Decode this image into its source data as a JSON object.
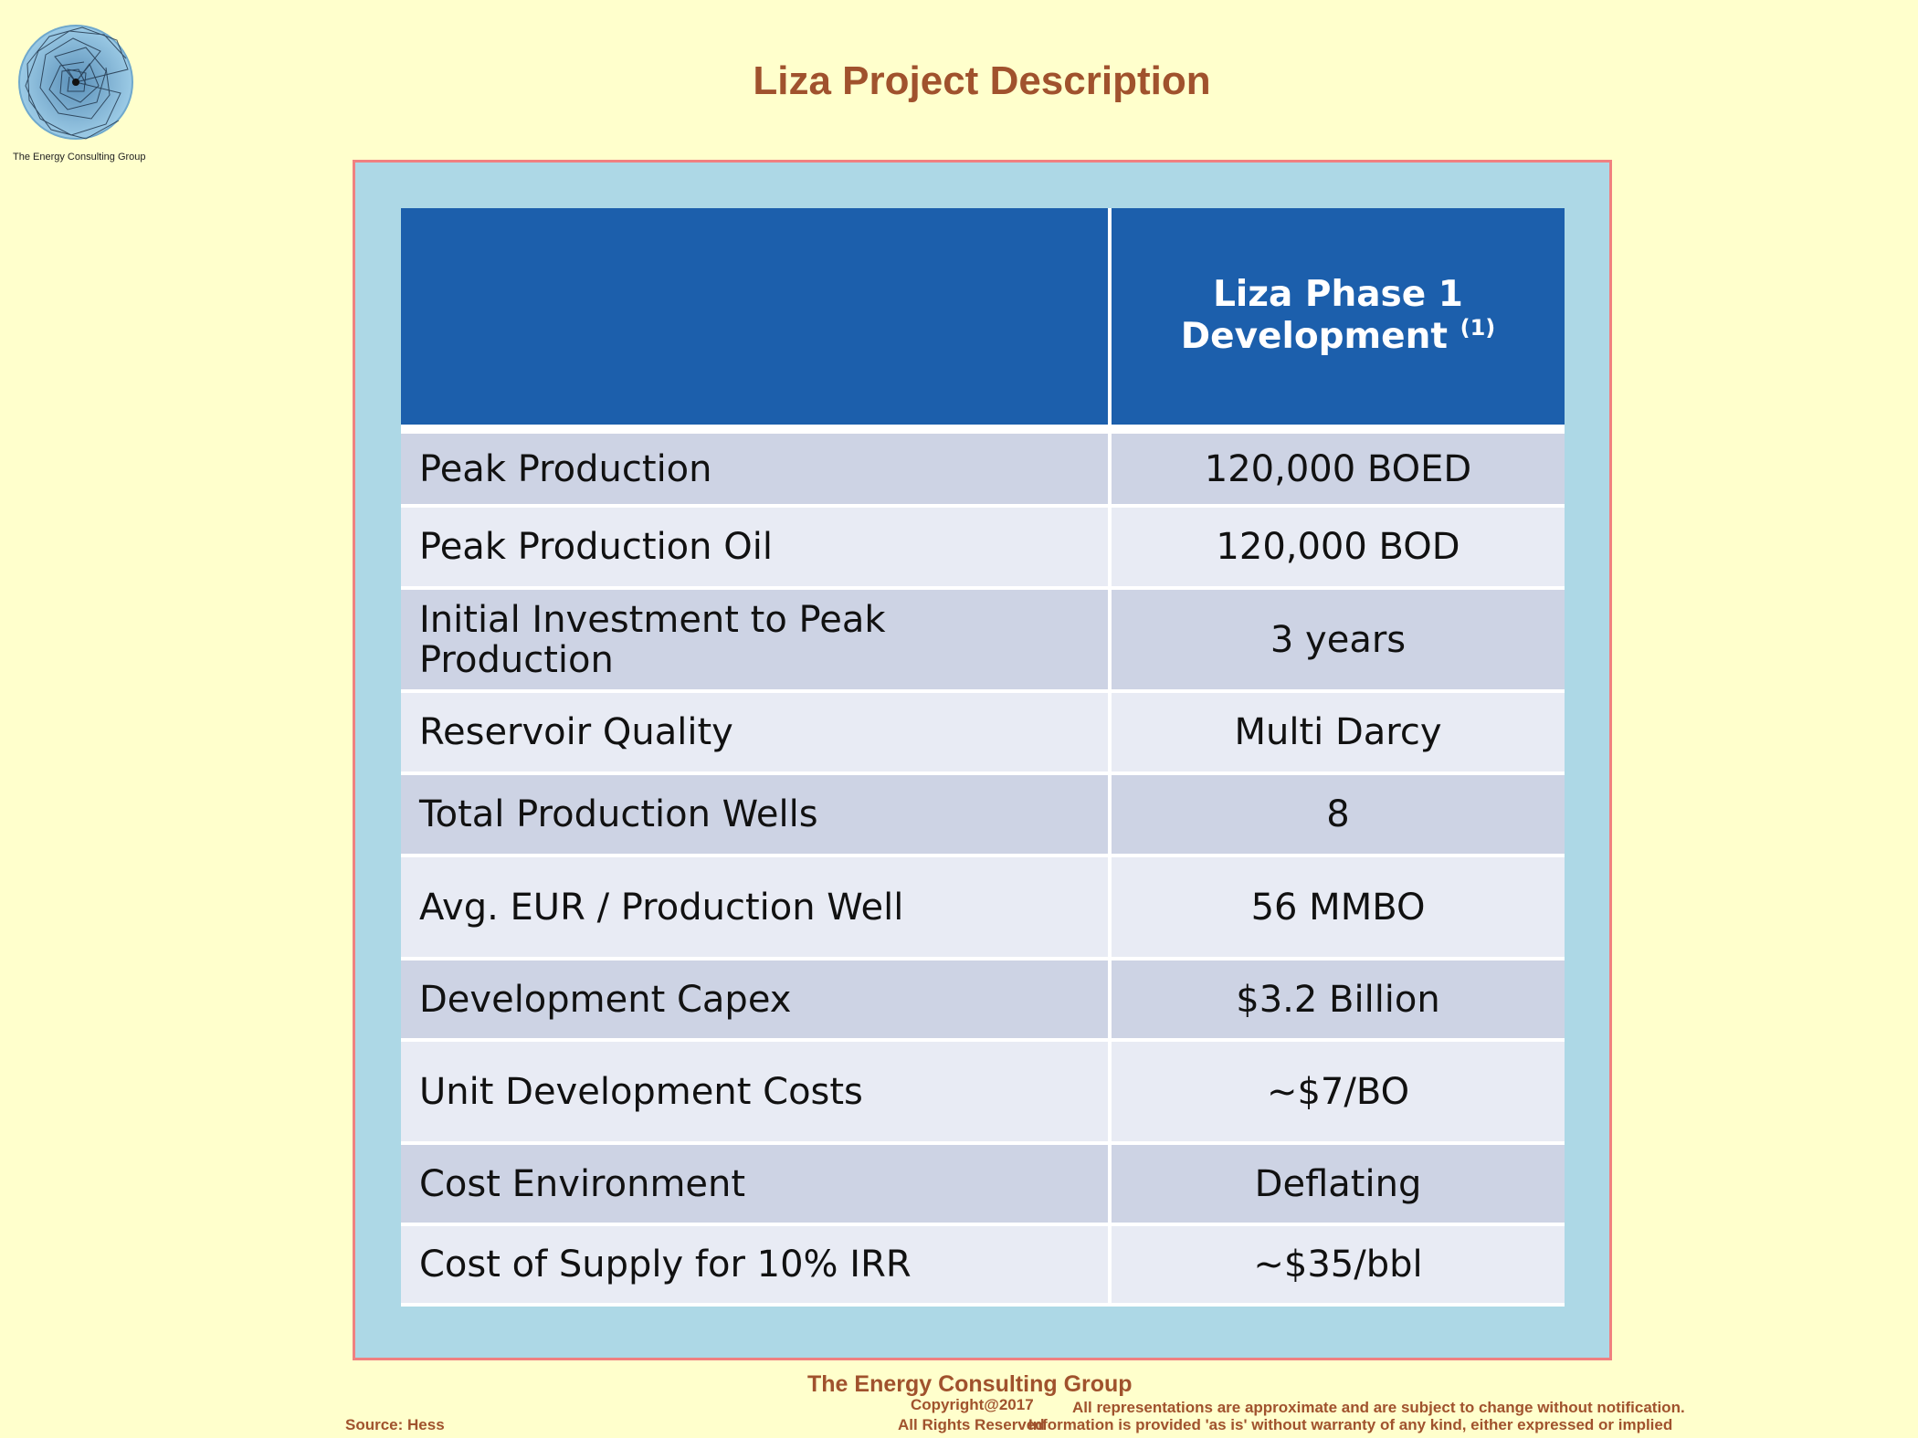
{
  "page": {
    "title": "Liza Project Description"
  },
  "logo": {
    "caption": "The Energy Consulting Group"
  },
  "table": {
    "header": {
      "col1": "",
      "col2": "Liza Phase 1 Development",
      "col2_superscript": "(1)"
    },
    "rows": [
      {
        "label": "Peak Production",
        "value": "120,000 BOED"
      },
      {
        "label": "Peak Production Oil",
        "value": "120,000 BOD"
      },
      {
        "label": "Initial Investment to Peak Production",
        "value": "3 years"
      },
      {
        "label": "Reservoir Quality",
        "value": "Multi Darcy"
      },
      {
        "label": "Total Production Wells",
        "value": "8"
      },
      {
        "label": "Avg. EUR / Production Well",
        "value": "56 MMBO"
      },
      {
        "label": "Development Capex",
        "value": "$3.2 Billion"
      },
      {
        "label": "Unit Development Costs",
        "value": "~$7/BO"
      },
      {
        "label": "Cost Environment",
        "value": "Deflating"
      },
      {
        "label": "Cost of Supply for 10% IRR",
        "value": "~$35/bbl"
      }
    ]
  },
  "footer": {
    "org": "The Energy Consulting Group",
    "copyright": "Copyright@2017",
    "rights": "All Rights Reserved",
    "source": "Source: Hess",
    "disclaimer1": "All representations are approximate and are subject to change without notification.",
    "disclaimer2": "Information is provided 'as is' without warranty of any kind, either expressed or implied"
  },
  "colors": {
    "background": "#ffffcc",
    "title": "#a0522d",
    "frame": "#add8e6",
    "frame_border": "#f08080",
    "header": "#1c5fac",
    "row_odd": "#cdd3e4",
    "row_even": "#e8ebf4"
  }
}
